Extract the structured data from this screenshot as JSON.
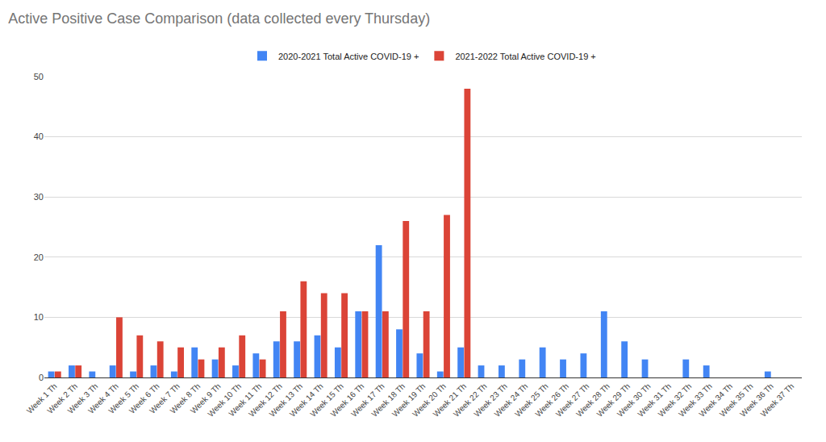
{
  "chart_data": {
    "type": "bar",
    "title": "Active Positive Case Comparison (data collected every Thursday)",
    "categories": [
      "Week 1 Th",
      "Week 2 Th",
      "Week 3 Th",
      "Week 4 Th",
      "Week 5 Th",
      "Week 6 Th",
      "Week 7 Th",
      "Week 8 Th",
      "Week 9 Th",
      "Week 10 Th",
      "Week 11 Th",
      "Week 12 Th",
      "Week 13 Th",
      "Week 14 Th",
      "Week 15 Th",
      "Week 16 Th",
      "Week 17 Th",
      "Week 18 Th",
      "Week 19 Th",
      "Week 20 Th",
      "Week 21 Th",
      "Week 22 Th",
      "Week 23 Th",
      "Week 24 Th",
      "Week 25 Th",
      "Week 26 Th",
      "Week 27 Th",
      "Week 28 Th",
      "Week 29 Th",
      "Week 30 Th",
      "Week 31 Th",
      "Week 32 Th",
      "Week 33 Th",
      "Week 34 Th",
      "Week 35 Th",
      "Week 36 Th",
      "Week 37 Th"
    ],
    "series": [
      {
        "name": "2020-2021 Total Active COVID-19 +",
        "color": "#4285f4",
        "values": [
          1,
          2,
          1,
          2,
          1,
          2,
          1,
          5,
          3,
          2,
          4,
          6,
          6,
          7,
          5,
          11,
          22,
          8,
          4,
          1,
          5,
          2,
          2,
          3,
          5,
          3,
          4,
          11,
          6,
          3,
          0,
          3,
          2,
          0,
          0,
          1,
          0
        ]
      },
      {
        "name": "2021-2022 Total Active COVID-19 +",
        "color": "#db4437",
        "values": [
          1,
          2,
          0,
          10,
          7,
          6,
          5,
          3,
          5,
          7,
          3,
          11,
          16,
          14,
          14,
          11,
          11,
          26,
          11,
          27,
          48,
          null,
          null,
          null,
          null,
          null,
          null,
          null,
          null,
          null,
          null,
          null,
          null,
          null,
          null,
          null,
          null
        ]
      }
    ],
    "ylim": [
      0,
      50
    ],
    "yticks": [
      0,
      10,
      20,
      30,
      40,
      50
    ],
    "grid": true,
    "legend": "top"
  }
}
